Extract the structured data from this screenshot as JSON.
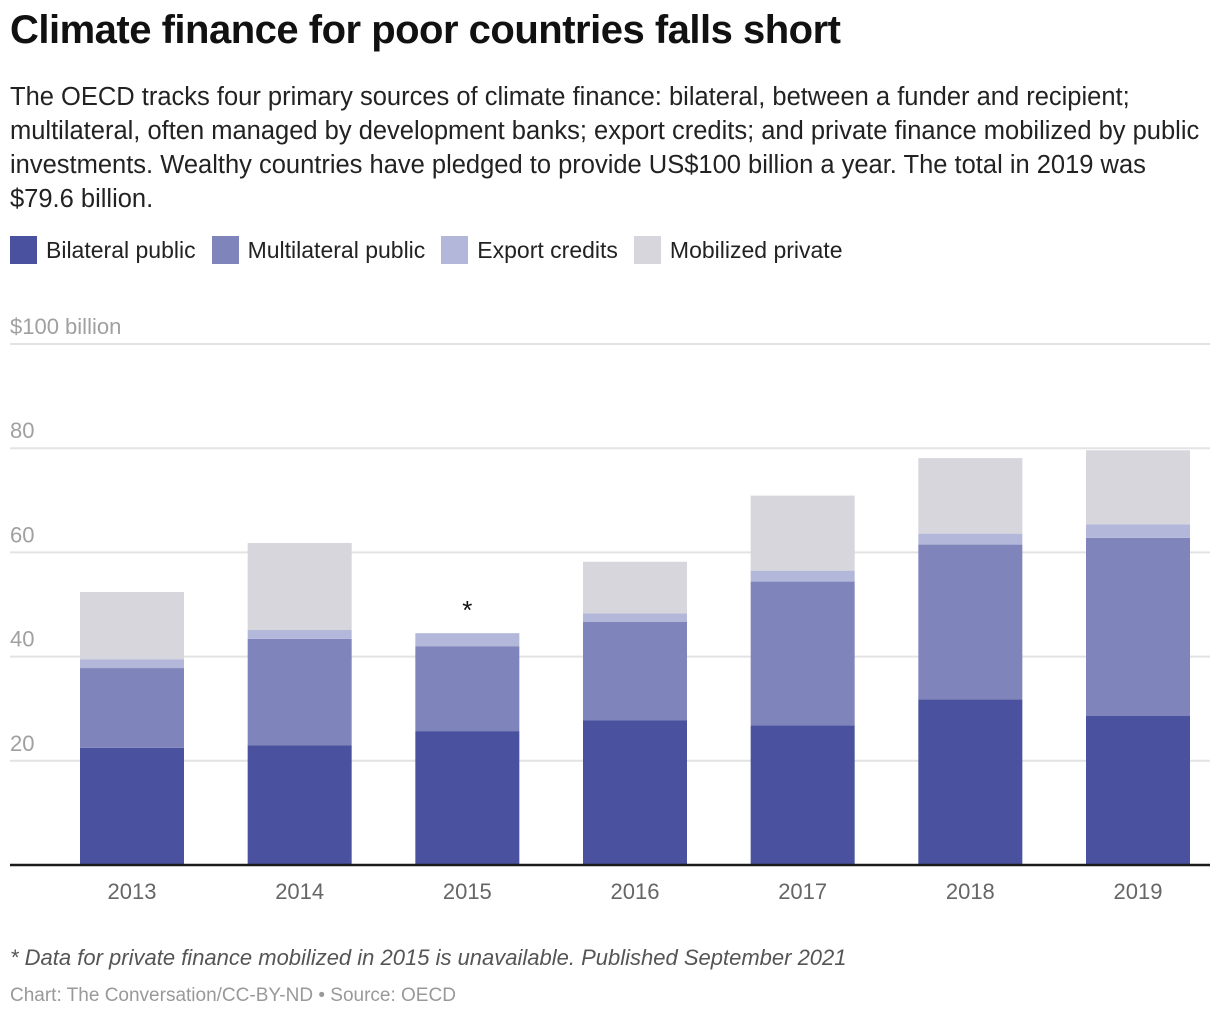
{
  "header": {
    "title": "Climate finance for poor countries falls short",
    "subtitle": "The OECD tracks four primary sources of climate finance: bilateral, between a funder and recipient; multilateral, often managed by development banks; export credits; and private finance mobilized by public investments. Wealthy countries have pledged to provide US$100 billion a year. The total in 2019 was $79.6 billion."
  },
  "footer": {
    "note": "* Data for private finance mobilized in 2015 is unavailable. Published September 2021",
    "source": "Chart: The Conversation/CC-BY-ND • Source: OECD"
  },
  "chart_data": {
    "type": "bar",
    "stacked": true,
    "title": "Climate finance for poor countries falls short",
    "xlabel": "",
    "ylabel": "",
    "ylim": [
      0,
      100
    ],
    "yticks": [
      20,
      40,
      60,
      80,
      100
    ],
    "ytick_labels": [
      "20",
      "40",
      "60",
      "80",
      "$100 billion"
    ],
    "grid": true,
    "legend_position": "top-left",
    "categories": [
      "2013",
      "2014",
      "2015",
      "2016",
      "2017",
      "2018",
      "2019"
    ],
    "series": [
      {
        "name": "Bilateral public",
        "color": "#4a519e",
        "values": [
          22.5,
          23.0,
          25.7,
          27.8,
          26.8,
          31.8,
          28.6
        ]
      },
      {
        "name": "Multilateral public",
        "color": "#7f84ba",
        "values": [
          15.3,
          20.4,
          16.3,
          18.9,
          27.6,
          29.7,
          34.2
        ]
      },
      {
        "name": "Export credits",
        "color": "#b3b7d9",
        "values": [
          1.7,
          1.7,
          2.5,
          1.6,
          2.1,
          2.1,
          2.6
        ]
      },
      {
        "name": "Mobilized private",
        "color": "#d6d6dc",
        "values": [
          12.9,
          16.7,
          null,
          9.9,
          14.4,
          14.5,
          14.2
        ]
      }
    ],
    "totals": [
      52.4,
      61.8,
      44.5,
      58.2,
      70.9,
      78.1,
      79.6
    ],
    "annotations": [
      {
        "category": "2015",
        "text": "*"
      }
    ]
  }
}
